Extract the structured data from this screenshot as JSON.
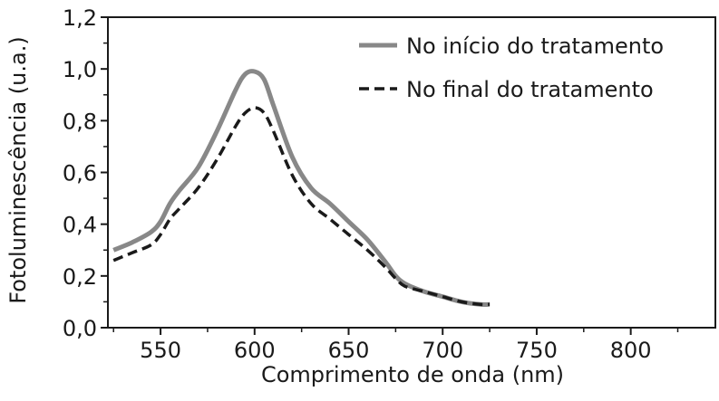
{
  "chart_data": {
    "type": "line",
    "title": "",
    "xlabel": "Comprimento de onda (nm)",
    "ylabel": "Fotoluminescência (u.a.)",
    "xlim": [
      522,
      845
    ],
    "ylim": [
      0,
      1.2
    ],
    "x_ticks": [
      550,
      600,
      650,
      700,
      750,
      800
    ],
    "x_tick_labels": [
      "550",
      "600",
      "650",
      "700",
      "750",
      "800"
    ],
    "y_ticks": [
      0,
      0.2,
      0.4,
      0.6,
      0.8,
      1.0,
      1.2
    ],
    "y_tick_labels": [
      "0,0",
      "0,2",
      "0,4",
      "0,6",
      "0,8",
      "1,0",
      "1,2"
    ],
    "grid": false,
    "legend_position": "top-right",
    "series": [
      {
        "name": "No início do tratamento",
        "style": "solid",
        "color": "#888888",
        "x": [
          525,
          535,
          545,
          550,
          555,
          560,
          570,
          580,
          590,
          595,
          600,
          605,
          610,
          620,
          630,
          640,
          650,
          660,
          670,
          675,
          680,
          690,
          700,
          710,
          720,
          725
        ],
        "y": [
          0.3,
          0.33,
          0.37,
          0.41,
          0.48,
          0.53,
          0.62,
          0.76,
          0.92,
          0.98,
          0.99,
          0.96,
          0.86,
          0.66,
          0.54,
          0.48,
          0.41,
          0.34,
          0.25,
          0.2,
          0.17,
          0.14,
          0.12,
          0.1,
          0.09,
          0.09
        ]
      },
      {
        "name": "No final do tratamento",
        "style": "dashed",
        "color": "#1a1a1a",
        "x": [
          525,
          535,
          545,
          550,
          555,
          560,
          570,
          580,
          590,
          595,
          600,
          605,
          610,
          620,
          630,
          640,
          650,
          660,
          670,
          675,
          680,
          690,
          700,
          710,
          720,
          725
        ],
        "y": [
          0.26,
          0.29,
          0.32,
          0.36,
          0.42,
          0.46,
          0.54,
          0.65,
          0.78,
          0.83,
          0.85,
          0.83,
          0.76,
          0.59,
          0.48,
          0.42,
          0.36,
          0.3,
          0.23,
          0.19,
          0.16,
          0.14,
          0.12,
          0.1,
          0.09,
          0.09
        ]
      }
    ]
  }
}
